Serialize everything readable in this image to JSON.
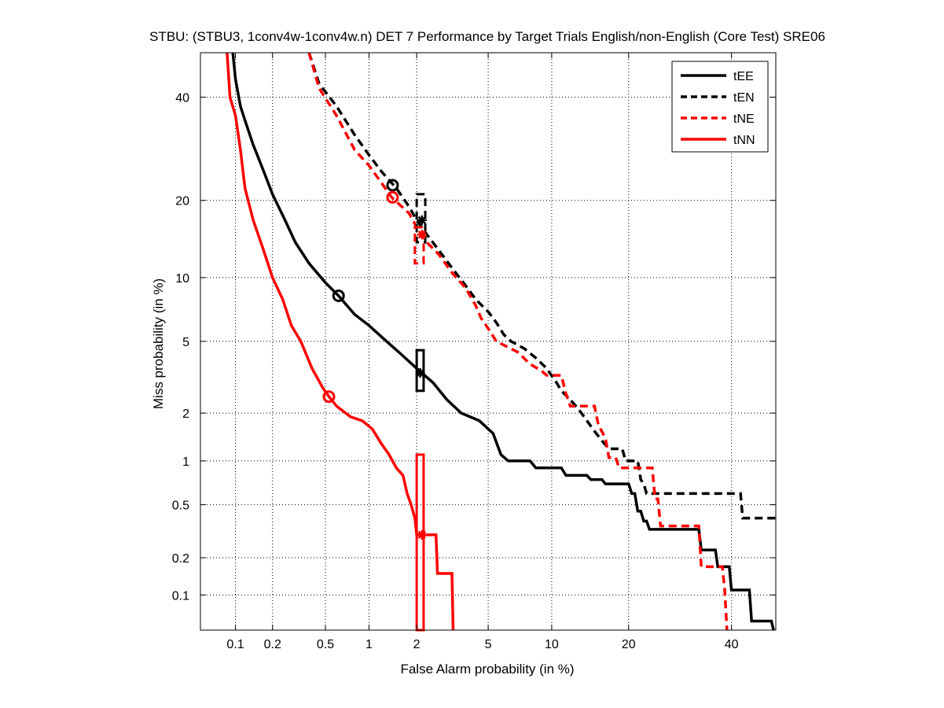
{
  "chart_data": {
    "type": "line",
    "title": "STBU: (STBU3, 1conv4w-1conv4w.n) DET 7 Performance by Target Trials English/non-English (Core Test) SRE06",
    "xlabel": "False Alarm probability (in %)",
    "ylabel": "Miss probability (in %)",
    "x_scale": "probit",
    "y_scale": "probit",
    "xlim": [
      0.05,
      50
    ],
    "ylim": [
      0.05,
      50
    ],
    "x_ticks": [
      0.1,
      0.2,
      0.5,
      1,
      2,
      5,
      10,
      20,
      40
    ],
    "x_tick_labels": [
      "0.1",
      "0.2",
      "0.5",
      "1",
      "2",
      "5",
      "10",
      "20",
      "40"
    ],
    "y_ticks": [
      0.1,
      0.2,
      0.5,
      1,
      2,
      5,
      10,
      20,
      40
    ],
    "y_tick_labels": [
      "0.1",
      "0.2",
      "0.5",
      "1",
      "2",
      "5",
      "10",
      "20",
      "40"
    ],
    "grid": true,
    "legend_position": "top-right",
    "series": [
      {
        "name": "tEE",
        "color": "#000000",
        "dash": "solid",
        "points": [
          [
            0.095,
            50
          ],
          [
            0.1,
            44
          ],
          [
            0.11,
            38
          ],
          [
            0.12,
            35
          ],
          [
            0.14,
            30
          ],
          [
            0.17,
            25
          ],
          [
            0.2,
            21
          ],
          [
            0.25,
            17
          ],
          [
            0.3,
            14
          ],
          [
            0.38,
            11.5
          ],
          [
            0.5,
            9.5
          ],
          [
            0.62,
            8.3
          ],
          [
            0.8,
            6.8
          ],
          [
            1.0,
            6.0
          ],
          [
            1.3,
            5.0
          ],
          [
            1.6,
            4.3
          ],
          [
            2.0,
            3.6
          ],
          [
            2.5,
            3.0
          ],
          [
            3.0,
            2.4
          ],
          [
            3.6,
            2.0
          ],
          [
            4.5,
            1.8
          ],
          [
            5.3,
            1.5
          ],
          [
            5.8,
            1.1
          ],
          [
            6.3,
            1.0
          ],
          [
            8,
            1.0
          ],
          [
            8.5,
            0.9
          ],
          [
            11,
            0.9
          ],
          [
            11.5,
            0.8
          ],
          [
            14,
            0.8
          ],
          [
            14.5,
            0.75
          ],
          [
            16,
            0.75
          ],
          [
            16.5,
            0.7
          ],
          [
            20,
            0.7
          ],
          [
            20.5,
            0.6
          ],
          [
            21,
            0.6
          ],
          [
            21.5,
            0.45
          ],
          [
            22,
            0.45
          ],
          [
            22.5,
            0.38
          ],
          [
            23,
            0.38
          ],
          [
            23.5,
            0.33
          ],
          [
            33,
            0.33
          ],
          [
            33.5,
            0.23
          ],
          [
            36.5,
            0.23
          ],
          [
            37,
            0.17
          ],
          [
            39.5,
            0.17
          ],
          [
            40,
            0.11
          ],
          [
            44,
            0.11
          ],
          [
            44.5,
            0.06
          ],
          [
            49,
            0.06
          ],
          [
            49.5,
            0.05
          ]
        ]
      },
      {
        "name": "tEN",
        "color": "#000000",
        "dash": "dashed",
        "points": [
          [
            0.38,
            50
          ],
          [
            0.45,
            43
          ],
          [
            0.6,
            38
          ],
          [
            0.8,
            32
          ],
          [
            1.0,
            28
          ],
          [
            1.2,
            25
          ],
          [
            1.5,
            22
          ],
          [
            1.8,
            19
          ],
          [
            2.0,
            17
          ],
          [
            2.3,
            15
          ],
          [
            2.7,
            13
          ],
          [
            3.2,
            11
          ],
          [
            3.7,
            9.5
          ],
          [
            4.3,
            8.0
          ],
          [
            5.0,
            7.0
          ],
          [
            5.5,
            6.2
          ],
          [
            6.0,
            5.4
          ],
          [
            6.5,
            5.0
          ],
          [
            7.5,
            4.6
          ],
          [
            8.5,
            4.1
          ],
          [
            9.5,
            3.6
          ],
          [
            10.5,
            3.0
          ],
          [
            11,
            2.7
          ],
          [
            12,
            2.4
          ],
          [
            13,
            2.1
          ],
          [
            14,
            1.8
          ],
          [
            15,
            1.55
          ],
          [
            16,
            1.35
          ],
          [
            17,
            1.2
          ],
          [
            19,
            1.2
          ],
          [
            19.5,
            1.0
          ],
          [
            21.5,
            1.0
          ],
          [
            22,
            0.75
          ],
          [
            22.5,
            0.7
          ],
          [
            23,
            0.6
          ],
          [
            42,
            0.6
          ],
          [
            42.5,
            0.4
          ],
          [
            50,
            0.4
          ]
        ]
      },
      {
        "name": "tNE",
        "color": "#ff0000",
        "dash": "dashed",
        "points": [
          [
            0.38,
            50
          ],
          [
            0.45,
            42
          ],
          [
            0.6,
            36
          ],
          [
            0.8,
            29
          ],
          [
            1.0,
            26
          ],
          [
            1.2,
            23
          ],
          [
            1.4,
            20.5
          ],
          [
            1.8,
            18
          ],
          [
            2.0,
            16
          ],
          [
            2.3,
            14
          ],
          [
            2.7,
            12.5
          ],
          [
            3.2,
            10.5
          ],
          [
            3.8,
            9.0
          ],
          [
            4.3,
            7.5
          ],
          [
            4.6,
            6.5
          ],
          [
            5.0,
            5.8
          ],
          [
            5.5,
            5.0
          ],
          [
            6.2,
            4.7
          ],
          [
            7.0,
            4.4
          ],
          [
            8.0,
            3.8
          ],
          [
            9.0,
            3.5
          ],
          [
            9.5,
            3.3
          ],
          [
            11,
            3.3
          ],
          [
            11.5,
            2.6
          ],
          [
            12,
            2.2
          ],
          [
            15,
            2.2
          ],
          [
            15.5,
            1.7
          ],
          [
            16.5,
            1.4
          ],
          [
            17,
            1.05
          ],
          [
            18,
            1.05
          ],
          [
            18.5,
            0.9
          ],
          [
            24,
            0.9
          ],
          [
            24.5,
            0.55
          ],
          [
            25,
            0.55
          ],
          [
            25.5,
            0.35
          ],
          [
            33,
            0.35
          ],
          [
            33.5,
            0.17
          ],
          [
            38,
            0.17
          ],
          [
            38.5,
            0.11
          ],
          [
            39,
            0.05
          ]
        ]
      },
      {
        "name": "tNN",
        "color": "#ff0000",
        "dash": "solid",
        "points": [
          [
            0.085,
            50
          ],
          [
            0.09,
            40
          ],
          [
            0.1,
            36
          ],
          [
            0.11,
            29
          ],
          [
            0.12,
            22
          ],
          [
            0.14,
            17
          ],
          [
            0.17,
            13
          ],
          [
            0.2,
            10
          ],
          [
            0.24,
            8
          ],
          [
            0.28,
            6
          ],
          [
            0.33,
            5
          ],
          [
            0.4,
            3.6
          ],
          [
            0.48,
            2.8
          ],
          [
            0.53,
            2.5
          ],
          [
            0.6,
            2.2
          ],
          [
            0.75,
            1.9
          ],
          [
            0.9,
            1.8
          ],
          [
            1.05,
            1.6
          ],
          [
            1.2,
            1.3
          ],
          [
            1.35,
            1.1
          ],
          [
            1.5,
            0.9
          ],
          [
            1.65,
            0.8
          ],
          [
            1.75,
            0.6
          ],
          [
            1.85,
            0.5
          ],
          [
            1.95,
            0.4
          ],
          [
            2.0,
            0.3
          ],
          [
            2.3,
            0.3
          ],
          [
            2.6,
            0.3
          ],
          [
            2.65,
            0.15
          ],
          [
            3.2,
            0.15
          ],
          [
            3.25,
            0.05
          ]
        ]
      }
    ],
    "markers": [
      {
        "series": "tEE",
        "type": "circle",
        "x": 0.62,
        "y": 8.3
      },
      {
        "series": "tEN",
        "type": "circle",
        "x": 1.42,
        "y": 22.5
      },
      {
        "series": "tNE",
        "type": "circle",
        "x": 1.42,
        "y": 20.5
      },
      {
        "series": "tNN",
        "type": "circle",
        "x": 0.53,
        "y": 2.5
      },
      {
        "series": "tEE",
        "type": "star",
        "x": 2.1,
        "y": 3.4
      },
      {
        "series": "tEN",
        "type": "star",
        "x": 2.15,
        "y": 17
      },
      {
        "series": "tNE",
        "type": "star",
        "x": 2.15,
        "y": 15
      },
      {
        "series": "tNN",
        "type": "star",
        "x": 2.15,
        "y": 0.3
      }
    ],
    "confidence_boxes": [
      {
        "series": "tEE",
        "x": [
          2.0,
          2.2
        ],
        "y": [
          2.7,
          4.5
        ]
      },
      {
        "series": "tEN",
        "x": [
          2.0,
          2.25
        ],
        "y": [
          14,
          21
        ]
      },
      {
        "series": "tNE",
        "x": [
          1.95,
          2.2
        ],
        "y": [
          11.5,
          16
        ]
      },
      {
        "series": "tNN",
        "x": [
          2.0,
          2.2
        ],
        "y": [
          0.05,
          1.1
        ]
      }
    ]
  }
}
